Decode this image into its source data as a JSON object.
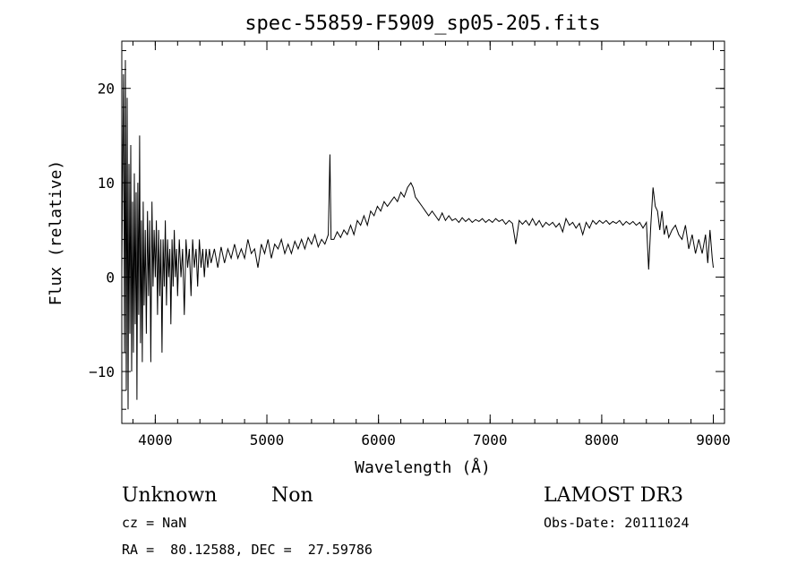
{
  "chart_data": {
    "type": "line",
    "title": "spec-55859-F5909_sp05-205.fits",
    "xlabel": "Wavelength (Å)",
    "ylabel": "Flux (relative)",
    "xlim": [
      3700,
      9100
    ],
    "ylim": [
      -15.5,
      25
    ],
    "x_ticks": [
      4000,
      5000,
      6000,
      7000,
      8000,
      9000
    ],
    "y_ticks": [
      -10,
      0,
      10,
      20
    ],
    "grid": false,
    "legend": "none",
    "series": [
      {
        "values": [
          [
            3700,
            0.5
          ],
          [
            3715,
            21.5
          ],
          [
            3725,
            -8
          ],
          [
            3732,
            23
          ],
          [
            3740,
            -12
          ],
          [
            3748,
            19
          ],
          [
            3756,
            -14
          ],
          [
            3764,
            12
          ],
          [
            3772,
            -6
          ],
          [
            3780,
            14
          ],
          [
            3788,
            -10
          ],
          [
            3796,
            8
          ],
          [
            3804,
            -8
          ],
          [
            3812,
            11
          ],
          [
            3820,
            -5
          ],
          [
            3828,
            9
          ],
          [
            3836,
            -13
          ],
          [
            3844,
            10
          ],
          [
            3852,
            -4
          ],
          [
            3860,
            15
          ],
          [
            3868,
            -7
          ],
          [
            3876,
            6
          ],
          [
            3884,
            -9
          ],
          [
            3892,
            8
          ],
          [
            3900,
            -3
          ],
          [
            3910,
            5
          ],
          [
            3920,
            -6
          ],
          [
            3930,
            7
          ],
          [
            3940,
            -2
          ],
          [
            3950,
            6
          ],
          [
            3960,
            -9
          ],
          [
            3970,
            8
          ],
          [
            3980,
            -1
          ],
          [
            3990,
            5
          ],
          [
            4000,
            0
          ],
          [
            4010,
            6
          ],
          [
            4020,
            -4
          ],
          [
            4030,
            5
          ],
          [
            4040,
            -2
          ],
          [
            4050,
            4
          ],
          [
            4060,
            -8
          ],
          [
            4070,
            4
          ],
          [
            4080,
            -1
          ],
          [
            4090,
            6
          ],
          [
            4100,
            -3
          ],
          [
            4110,
            4
          ],
          [
            4120,
            0
          ],
          [
            4130,
            3
          ],
          [
            4140,
            -5
          ],
          [
            4150,
            4
          ],
          [
            4160,
            -1
          ],
          [
            4170,
            5
          ],
          [
            4180,
            0
          ],
          [
            4190,
            3
          ],
          [
            4200,
            -2
          ],
          [
            4215,
            4
          ],
          [
            4230,
            0
          ],
          [
            4245,
            3
          ],
          [
            4260,
            -4
          ],
          [
            4275,
            4
          ],
          [
            4290,
            1
          ],
          [
            4305,
            3
          ],
          [
            4320,
            -2
          ],
          [
            4335,
            4
          ],
          [
            4350,
            1
          ],
          [
            4365,
            3
          ],
          [
            4380,
            -1
          ],
          [
            4395,
            4
          ],
          [
            4410,
            1
          ],
          [
            4425,
            3
          ],
          [
            4440,
            0
          ],
          [
            4455,
            3
          ],
          [
            4470,
            1
          ],
          [
            4485,
            3
          ],
          [
            4500,
            1.5
          ],
          [
            4530,
            3
          ],
          [
            4560,
            1
          ],
          [
            4590,
            3.2
          ],
          [
            4620,
            1.5
          ],
          [
            4650,
            3
          ],
          [
            4680,
            2
          ],
          [
            4710,
            3.5
          ],
          [
            4740,
            2
          ],
          [
            4770,
            3
          ],
          [
            4800,
            2
          ],
          [
            4830,
            4
          ],
          [
            4860,
            2.5
          ],
          [
            4890,
            3
          ],
          [
            4920,
            1
          ],
          [
            4950,
            3.5
          ],
          [
            4980,
            2.5
          ],
          [
            5010,
            4
          ],
          [
            5040,
            2
          ],
          [
            5070,
            3.5
          ],
          [
            5100,
            3
          ],
          [
            5130,
            4
          ],
          [
            5160,
            2.5
          ],
          [
            5190,
            3.5
          ],
          [
            5220,
            2.5
          ],
          [
            5250,
            3.8
          ],
          [
            5280,
            3
          ],
          [
            5310,
            4
          ],
          [
            5340,
            3
          ],
          [
            5370,
            4.2
          ],
          [
            5400,
            3.5
          ],
          [
            5430,
            4.5
          ],
          [
            5460,
            3.2
          ],
          [
            5490,
            4
          ],
          [
            5520,
            3.5
          ],
          [
            5550,
            4.5
          ],
          [
            5565,
            13
          ],
          [
            5575,
            4
          ],
          [
            5600,
            4
          ],
          [
            5630,
            4.8
          ],
          [
            5660,
            4.2
          ],
          [
            5690,
            5
          ],
          [
            5720,
            4.5
          ],
          [
            5750,
            5.5
          ],
          [
            5780,
            4.5
          ],
          [
            5810,
            6
          ],
          [
            5840,
            5.5
          ],
          [
            5870,
            6.5
          ],
          [
            5900,
            5.5
          ],
          [
            5930,
            7
          ],
          [
            5960,
            6.5
          ],
          [
            5990,
            7.5
          ],
          [
            6020,
            7
          ],
          [
            6050,
            8
          ],
          [
            6080,
            7.5
          ],
          [
            6110,
            8
          ],
          [
            6140,
            8.5
          ],
          [
            6170,
            8
          ],
          [
            6200,
            9
          ],
          [
            6230,
            8.5
          ],
          [
            6260,
            9.5
          ],
          [
            6290,
            10
          ],
          [
            6310,
            9.5
          ],
          [
            6330,
            8.5
          ],
          [
            6360,
            8
          ],
          [
            6390,
            7.5
          ],
          [
            6420,
            7
          ],
          [
            6450,
            6.5
          ],
          [
            6480,
            7
          ],
          [
            6510,
            6.5
          ],
          [
            6540,
            6
          ],
          [
            6570,
            6.8
          ],
          [
            6600,
            6
          ],
          [
            6630,
            6.5
          ],
          [
            6660,
            6
          ],
          [
            6690,
            6.2
          ],
          [
            6720,
            5.8
          ],
          [
            6750,
            6.3
          ],
          [
            6780,
            5.9
          ],
          [
            6810,
            6.2
          ],
          [
            6840,
            5.8
          ],
          [
            6870,
            6.1
          ],
          [
            6900,
            5.9
          ],
          [
            6930,
            6.2
          ],
          [
            6960,
            5.8
          ],
          [
            6990,
            6.1
          ],
          [
            7020,
            5.8
          ],
          [
            7050,
            6.2
          ],
          [
            7080,
            5.9
          ],
          [
            7110,
            6.1
          ],
          [
            7140,
            5.6
          ],
          [
            7170,
            6
          ],
          [
            7200,
            5.7
          ],
          [
            7230,
            3.5
          ],
          [
            7260,
            6
          ],
          [
            7290,
            5.6
          ],
          [
            7320,
            6
          ],
          [
            7350,
            5.5
          ],
          [
            7380,
            6.2
          ],
          [
            7410,
            5.5
          ],
          [
            7440,
            6
          ],
          [
            7470,
            5.3
          ],
          [
            7500,
            5.8
          ],
          [
            7530,
            5.5
          ],
          [
            7560,
            5.8
          ],
          [
            7590,
            5.3
          ],
          [
            7620,
            5.7
          ],
          [
            7650,
            4.8
          ],
          [
            7680,
            6.2
          ],
          [
            7710,
            5.5
          ],
          [
            7740,
            5.8
          ],
          [
            7770,
            5.2
          ],
          [
            7800,
            5.7
          ],
          [
            7830,
            4.5
          ],
          [
            7860,
            5.8
          ],
          [
            7890,
            5.2
          ],
          [
            7920,
            6
          ],
          [
            7950,
            5.6
          ],
          [
            7980,
            6
          ],
          [
            8010,
            5.7
          ],
          [
            8040,
            6
          ],
          [
            8070,
            5.6
          ],
          [
            8100,
            5.9
          ],
          [
            8130,
            5.7
          ],
          [
            8160,
            6
          ],
          [
            8190,
            5.5
          ],
          [
            8220,
            5.9
          ],
          [
            8250,
            5.6
          ],
          [
            8280,
            5.9
          ],
          [
            8310,
            5.5
          ],
          [
            8340,
            5.8
          ],
          [
            8370,
            5.2
          ],
          [
            8400,
            5.8
          ],
          [
            8420,
            0.8
          ],
          [
            8440,
            5.5
          ],
          [
            8460,
            9.5
          ],
          [
            8480,
            7.5
          ],
          [
            8500,
            7
          ],
          [
            8520,
            5
          ],
          [
            8540,
            7
          ],
          [
            8560,
            4.5
          ],
          [
            8580,
            5.5
          ],
          [
            8600,
            4.2
          ],
          [
            8630,
            5
          ],
          [
            8660,
            5.5
          ],
          [
            8690,
            4.5
          ],
          [
            8720,
            4
          ],
          [
            8750,
            5.5
          ],
          [
            8780,
            3
          ],
          [
            8810,
            4.5
          ],
          [
            8840,
            2.5
          ],
          [
            8870,
            4
          ],
          [
            8900,
            2.5
          ],
          [
            8930,
            4.5
          ],
          [
            8950,
            1.5
          ],
          [
            8970,
            5
          ],
          [
            8990,
            2
          ],
          [
            9000,
            1
          ]
        ]
      }
    ]
  },
  "footer": {
    "object_class": "Unknown",
    "object_subclass": "Non",
    "cz": "cz = NaN",
    "coords": "RA =  80.12588, DEC =  27.59786",
    "survey": "LAMOST DR3",
    "obs_date": "Obs-Date: 20111024"
  }
}
